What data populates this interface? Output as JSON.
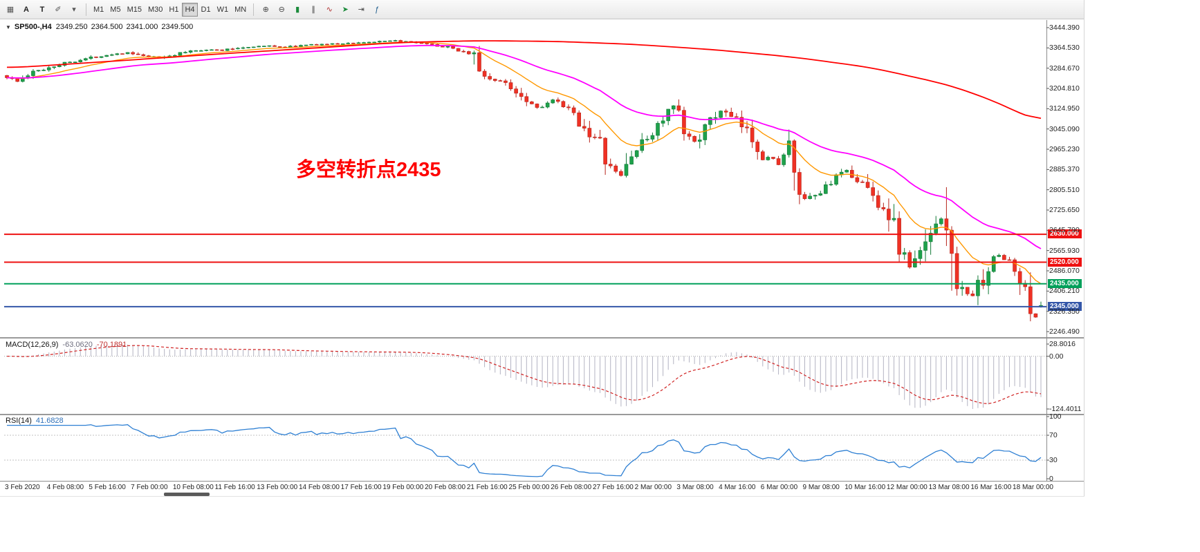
{
  "toolbar": {
    "left_icons": [
      {
        "name": "windows-grid-icon",
        "glyph": "▦",
        "color": "#555"
      },
      {
        "name": "text-label-icon",
        "glyph": "A",
        "color": "#222",
        "bold": true
      },
      {
        "name": "text-icon",
        "glyph": "T",
        "color": "#222",
        "bold": true
      },
      {
        "name": "draw-objects-icon",
        "glyph": "✐",
        "color": "#555"
      },
      {
        "name": "objects-dropdown-icon",
        "glyph": "▾",
        "color": "#555"
      }
    ],
    "timeframes": [
      "M1",
      "M5",
      "M15",
      "M30",
      "H1",
      "H4",
      "D1",
      "W1",
      "MN"
    ],
    "active_timeframe": "H4",
    "right_icons": [
      {
        "name": "zoom-in-icon",
        "glyph": "⊕",
        "color": "#444"
      },
      {
        "name": "zoom-out-icon",
        "glyph": "⊖",
        "color": "#444"
      },
      {
        "name": "candlestick-chart-icon",
        "glyph": "▮",
        "color": "#1a8a3a"
      },
      {
        "name": "bar-chart-icon",
        "glyph": "∥",
        "color": "#444"
      },
      {
        "name": "line-chart-icon",
        "glyph": "∿",
        "color": "#b03030"
      },
      {
        "name": "auto-scroll-icon",
        "glyph": "➤",
        "color": "#1a8a3a"
      },
      {
        "name": "chart-shift-icon",
        "glyph": "⇥",
        "color": "#444"
      },
      {
        "name": "indicators-icon",
        "glyph": "ƒ",
        "color": "#1a5a8a"
      }
    ]
  },
  "main_chart": {
    "collapse_icon": "▼",
    "title_symbol": "SP500-,H4",
    "ohlc": {
      "o": "2349.250",
      "h": "2364.500",
      "l": "2341.000",
      "c": "2349.500"
    },
    "annotation": {
      "text": "多空转折点2435",
      "color": "#FE0000"
    },
    "price_axis_labels": [
      "3444.390",
      "3364.530",
      "3284.670",
      "3204.810",
      "3124.950",
      "3045.090",
      "2965.230",
      "2885.370",
      "2805.510",
      "2725.650",
      "2645.790",
      "2565.930",
      "2486.070",
      "2406.210",
      "2326.350",
      "2246.490"
    ]
  },
  "macd_panel": {
    "label": "MACD(12,26,9)",
    "value": "-63.0620",
    "signal": "-70.1891"
  },
  "rsi_panel": {
    "label": "RSI(14)",
    "value": "41.6828"
  },
  "chart_data": {
    "type": "candlestick",
    "symbol": "SP500-",
    "timeframe": "H4",
    "title": "SP500-,H4 2349.250 2364.500 2341.000 2349.500",
    "bars": 198,
    "x_range": [
      "3 Feb 2020",
      "18 Mar 2020"
    ],
    "price_axis": {
      "min": 2246.49,
      "max": 3444.39,
      "step": 79.86
    },
    "last_bar": {
      "open": 2349.25,
      "high": 2364.5,
      "low": 2341.0,
      "close": 2349.5
    },
    "close_anchors": [
      [
        0,
        3250
      ],
      [
        2,
        3232
      ],
      [
        5,
        3268
      ],
      [
        8,
        3288
      ],
      [
        11,
        3305
      ],
      [
        14,
        3318
      ],
      [
        17,
        3330
      ],
      [
        20,
        3340
      ],
      [
        23,
        3345
      ],
      [
        26,
        3331
      ],
      [
        29,
        3327
      ],
      [
        32,
        3338
      ],
      [
        35,
        3352
      ],
      [
        38,
        3358
      ],
      [
        41,
        3355
      ],
      [
        44,
        3364
      ],
      [
        47,
        3370
      ],
      [
        50,
        3372
      ],
      [
        53,
        3368
      ],
      [
        56,
        3374
      ],
      [
        59,
        3378
      ],
      [
        62,
        3380
      ],
      [
        65,
        3383
      ],
      [
        68,
        3386
      ],
      [
        71,
        3389
      ],
      [
        74,
        3392
      ],
      [
        77,
        3386
      ],
      [
        80,
        3378
      ],
      [
        83,
        3370
      ],
      [
        86,
        3356
      ],
      [
        89,
        3337
      ],
      [
        90,
        3262
      ],
      [
        93,
        3236
      ],
      [
        95,
        3226
      ],
      [
        98,
        3180
      ],
      [
        101,
        3130
      ],
      [
        104,
        3158
      ],
      [
        107,
        3118
      ],
      [
        110,
        3052
      ],
      [
        113,
        2982
      ],
      [
        115,
        2884
      ],
      [
        117,
        2862
      ],
      [
        119,
        2944
      ],
      [
        122,
        3008
      ],
      [
        125,
        3084
      ],
      [
        127,
        3132
      ],
      [
        129,
        3022
      ],
      [
        131,
        2998
      ],
      [
        133,
        3048
      ],
      [
        136,
        3118
      ],
      [
        139,
        3076
      ],
      [
        142,
        3012
      ],
      [
        144,
        2942
      ],
      [
        147,
        2912
      ],
      [
        149,
        2968
      ],
      [
        150,
        2824
      ],
      [
        152,
        2762
      ],
      [
        155,
        2792
      ],
      [
        157,
        2842
      ],
      [
        160,
        2880
      ],
      [
        163,
        2832
      ],
      [
        166,
        2752
      ],
      [
        168,
        2712
      ],
      [
        170,
        2582
      ],
      [
        172,
        2502
      ],
      [
        173,
        2522
      ],
      [
        175,
        2592
      ],
      [
        177,
        2688
      ],
      [
        179,
        2704
      ],
      [
        180,
        2484
      ],
      [
        182,
        2404
      ],
      [
        184,
        2392
      ],
      [
        185,
        2422
      ],
      [
        187,
        2498
      ],
      [
        189,
        2548
      ],
      [
        191,
        2522
      ],
      [
        193,
        2442
      ],
      [
        195,
        2352
      ],
      [
        196,
        2302
      ],
      [
        197,
        2349.5
      ]
    ],
    "moving_averages": [
      {
        "name": "fast",
        "color": "#FF9800",
        "period": 14
      },
      {
        "name": "medium",
        "color": "#FF00FF",
        "period": 40
      },
      {
        "name": "slow",
        "color": "#FF0000",
        "anchors": [
          [
            0,
            3285
          ],
          [
            20,
            3312
          ],
          [
            40,
            3340
          ],
          [
            60,
            3366
          ],
          [
            75,
            3386
          ],
          [
            90,
            3393
          ],
          [
            105,
            3390
          ],
          [
            120,
            3378
          ],
          [
            135,
            3357
          ],
          [
            150,
            3328
          ],
          [
            165,
            3286
          ],
          [
            180,
            3216
          ],
          [
            190,
            3140
          ],
          [
            197,
            3062
          ]
        ]
      }
    ],
    "hlines": [
      {
        "price": 2630.0,
        "label": "2630.000",
        "color": "#ee1111"
      },
      {
        "price": 2520.0,
        "label": "2520.000",
        "color": "#ee1111"
      },
      {
        "price": 2435.0,
        "label": "2435.000",
        "color": "#00a05a"
      },
      {
        "price": 2345.0,
        "label": "2345.000",
        "color": "#3356a8"
      }
    ],
    "candle_colors": {
      "up_fill": "#1ea14b",
      "up_stroke": "#127a37",
      "down_fill": "#ef3124",
      "down_stroke": "#b7231b"
    },
    "indicators": [
      {
        "type": "MACD",
        "params": [
          12,
          26,
          9
        ],
        "value": -63.062,
        "signal_value": -70.1891,
        "axis_labels": [
          "28.8016",
          "0.00",
          "-124.4011"
        ],
        "axis_values": [
          28.8016,
          0,
          -124.4011
        ],
        "histogram_color": "#b3b3c2",
        "signal_color": "#d02020"
      },
      {
        "type": "RSI",
        "params": [
          14
        ],
        "value": 41.6828,
        "axis_labels": [
          "100",
          "70",
          "30",
          "0"
        ],
        "axis_values": [
          100,
          70,
          30,
          0
        ],
        "line_color": "#2d7fd3",
        "levels": [
          70,
          30
        ]
      }
    ],
    "time_axis_labels": [
      "3 Feb 2020",
      "4 Feb 08:00",
      "5 Feb 16:00",
      "7 Feb 00:00",
      "10 Feb 08:00",
      "11 Feb 16:00",
      "13 Feb 00:00",
      "14 Feb 08:00",
      "17 Feb 16:00",
      "19 Feb 00:00",
      "20 Feb 08:00",
      "21 Feb 16:00",
      "25 Feb 00:00",
      "26 Feb 08:00",
      "27 Feb 16:00",
      "2 Mar 00:00",
      "3 Mar 08:00",
      "4 Mar 16:00",
      "6 Mar 00:00",
      "9 Mar 08:00",
      "10 Mar 16:00",
      "12 Mar 00:00",
      "13 Mar 08:00",
      "16 Mar 16:00",
      "18 Mar 00:00"
    ],
    "time_label_bar_step": 8
  }
}
